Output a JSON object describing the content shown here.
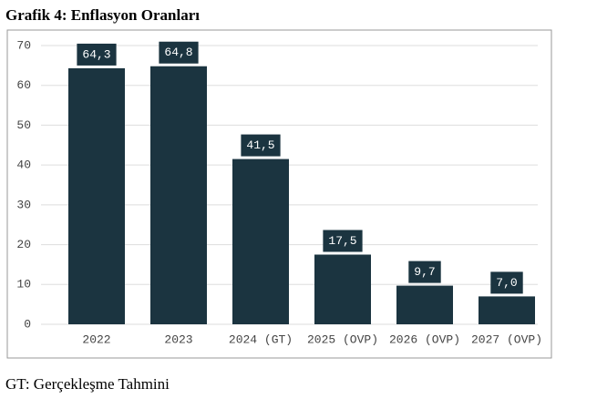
{
  "title": "Grafik 4: Enflasyon Oranları",
  "chart_data": {
    "type": "bar",
    "categories": [
      "2022",
      "2023",
      "2024 (GT)",
      "2025 (OVP)",
      "2026 (OVP)",
      "2027 (OVP)"
    ],
    "values": [
      64.3,
      64.8,
      41.5,
      17.5,
      9.7,
      7.0
    ],
    "value_labels": [
      "64,3",
      "64,8",
      "41,5",
      "17,5",
      "9,7",
      "7,0"
    ],
    "color": "#1b3440",
    "ylim": [
      0,
      70
    ],
    "yticks": [
      0,
      10,
      20,
      30,
      40,
      50,
      60,
      70
    ],
    "grid": true
  },
  "footnote": "GT: Gerçekleşme Tahmini"
}
